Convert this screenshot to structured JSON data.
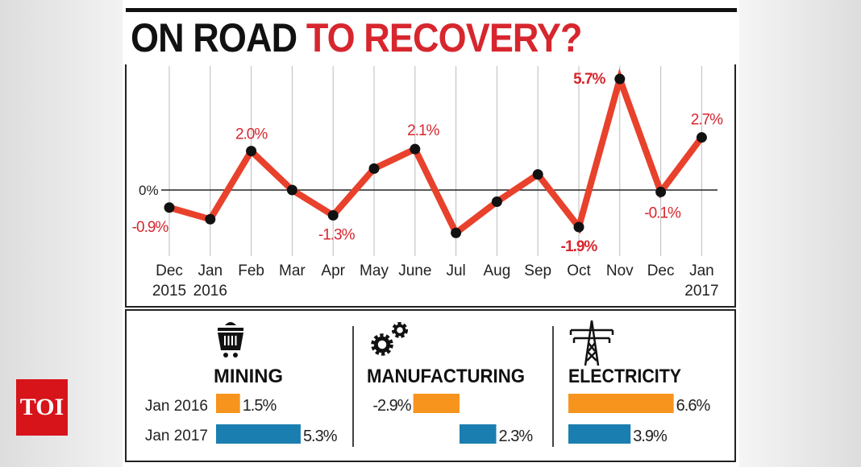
{
  "title": {
    "part1": "ON ROAD",
    "part2": "TO RECOVERY?"
  },
  "logo": "TOI",
  "chart_data": [
    {
      "type": "line",
      "categories": [
        "Dec 2015",
        "Jan 2016",
        "Feb",
        "Mar",
        "Apr",
        "May",
        "June",
        "Jul",
        "Aug",
        "Sep",
        "Oct",
        "Nov",
        "Dec",
        "Jan 2017"
      ],
      "tick_labels": [
        [
          "Dec",
          "2015"
        ],
        [
          "Jan",
          "2016"
        ],
        [
          "Feb",
          ""
        ],
        [
          "Mar",
          ""
        ],
        [
          "Apr",
          ""
        ],
        [
          "May",
          ""
        ],
        [
          "June",
          ""
        ],
        [
          "Jul",
          ""
        ],
        [
          "Aug",
          ""
        ],
        [
          "Sep",
          ""
        ],
        [
          "Oct",
          ""
        ],
        [
          "Nov",
          ""
        ],
        [
          "Dec",
          ""
        ],
        [
          "Jan",
          "2017"
        ]
      ],
      "values": [
        -0.9,
        -1.5,
        2.0,
        0.0,
        -1.3,
        1.1,
        2.1,
        -2.2,
        -0.6,
        0.8,
        -1.9,
        5.7,
        -0.1,
        2.7
      ],
      "data_labels": [
        "-0.9%",
        null,
        "2.0%",
        null,
        "-1.3%",
        null,
        "2.1%",
        null,
        null,
        null,
        "-1.9%",
        "5.7%",
        "-0.1%",
        "2.7%"
      ],
      "bold_labels": [
        10,
        11
      ],
      "zero_label": "0%",
      "ylim": [
        -2.5,
        5.9
      ],
      "grid": "vertical",
      "colors": {
        "line": "#e8412c",
        "point": "#111111",
        "label": "#d7262e"
      }
    },
    {
      "type": "bar",
      "orientation": "horizontal",
      "series": [
        {
          "name": "Jan 2016",
          "color": "#f7941d"
        },
        {
          "name": "Jan 2017",
          "color": "#1a7fb0"
        }
      ],
      "groups": [
        {
          "name": "MINING",
          "icon": "mining-cart-icon",
          "values": [
            1.5,
            5.3
          ],
          "labels": [
            "1.5%",
            "5.3%"
          ]
        },
        {
          "name": "MANUFACTURING",
          "icon": "gears-icon",
          "values": [
            -2.9,
            2.3
          ],
          "labels": [
            "-2.9%",
            "2.3%"
          ]
        },
        {
          "name": "ELECTRICITY",
          "icon": "power-tower-icon",
          "values": [
            6.6,
            3.9
          ],
          "labels": [
            "6.6%",
            "3.9%"
          ]
        }
      ]
    }
  ]
}
